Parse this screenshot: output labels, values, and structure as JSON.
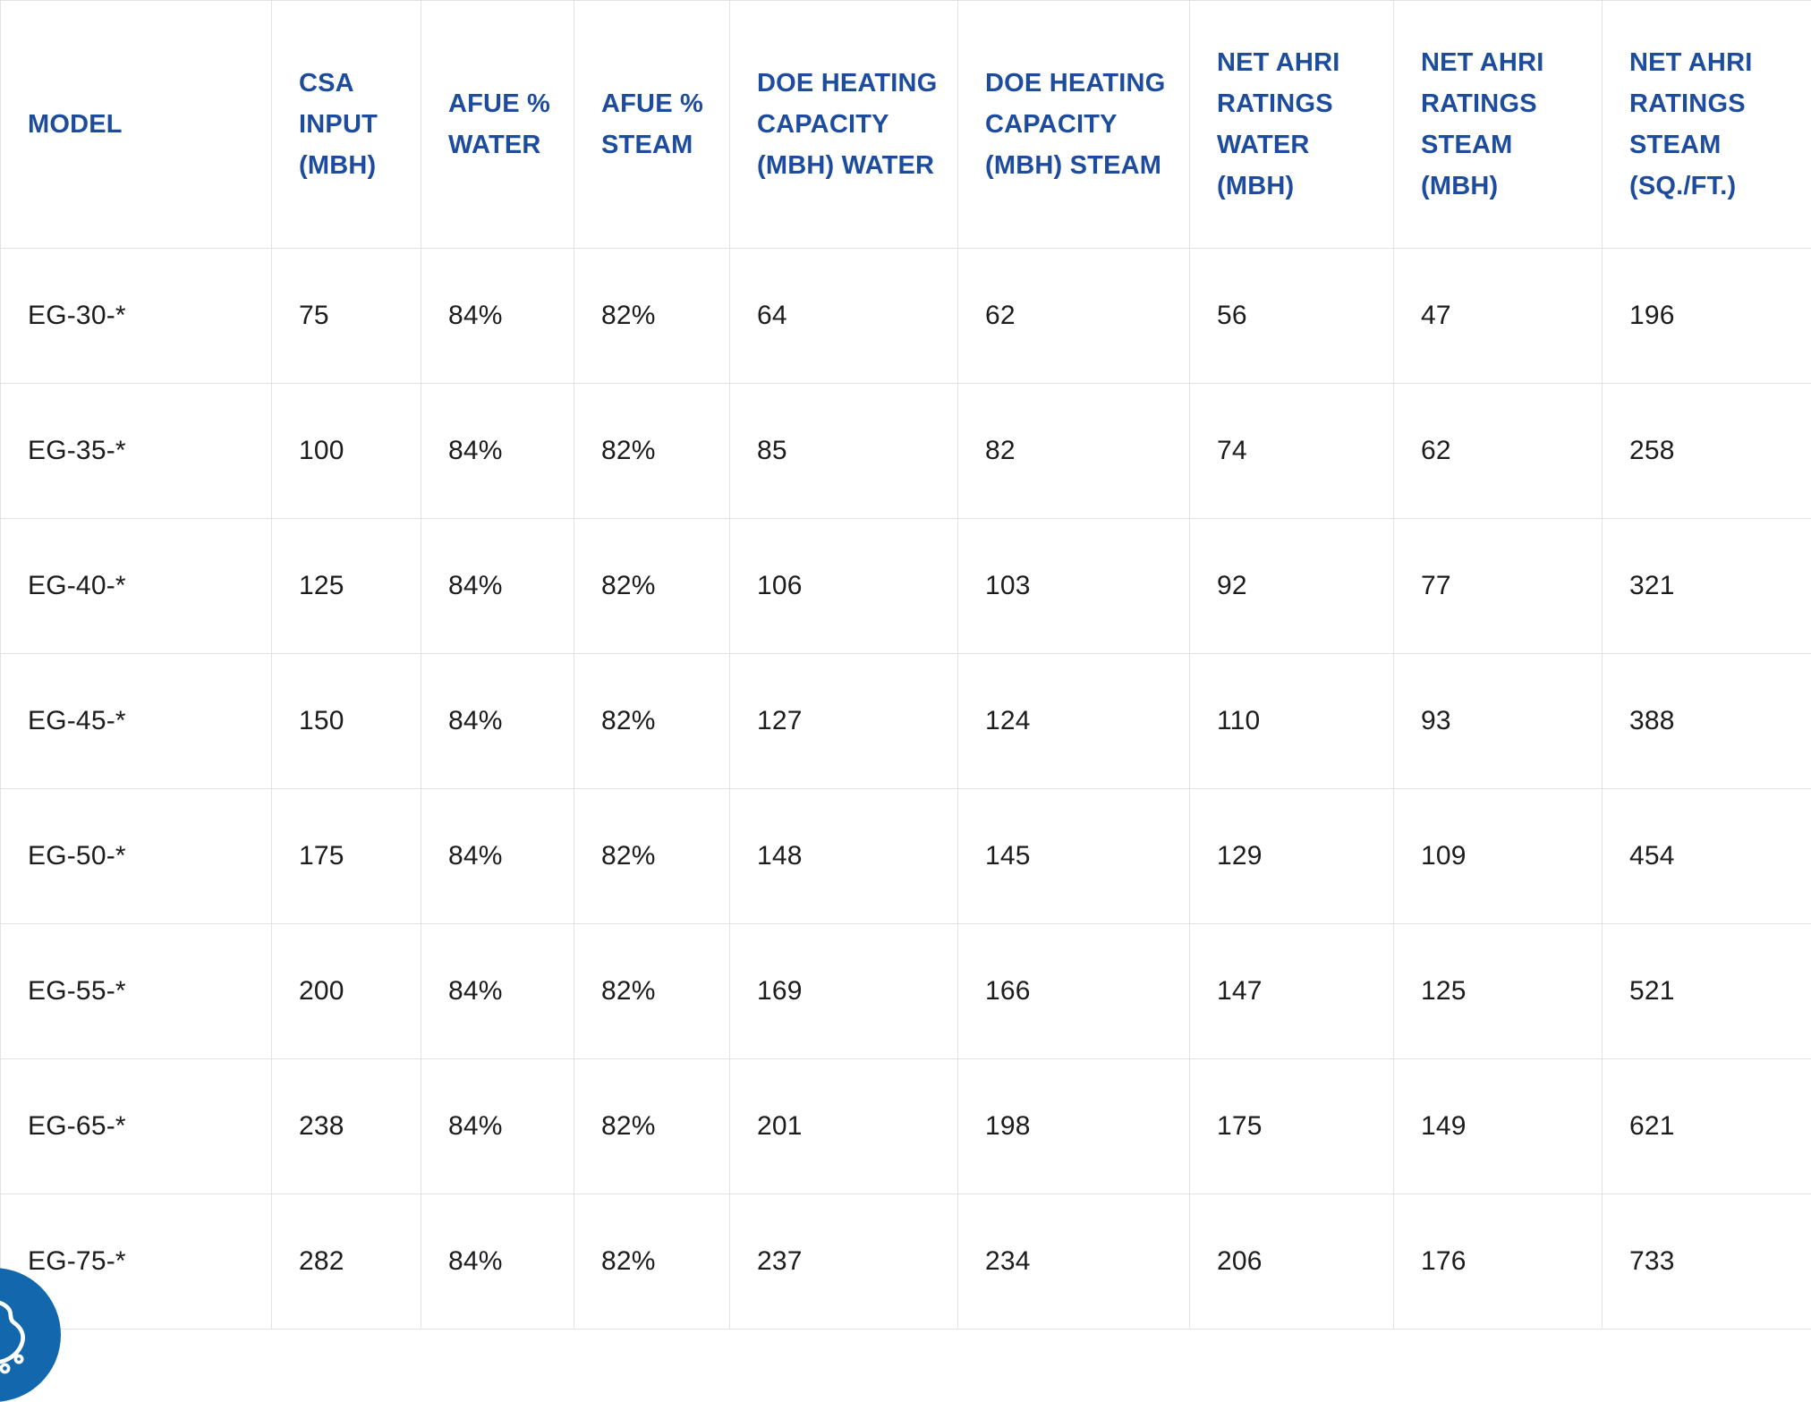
{
  "table": {
    "headers": [
      "MODEL",
      "CSA INPUT (MBH)",
      "AFUE % WATER",
      "AFUE % STEAM",
      "DOE HEATING CAPACITY (MBH) WATER",
      "DOE HEATING CAPACITY (MBH) STEAM",
      "NET AHRI RATINGS WATER (MBH)",
      "NET AHRI RATINGS STEAM (MBH)",
      "NET AHRI RATINGS STEAM (SQ./FT.)"
    ],
    "rows": [
      [
        "EG-30-*",
        "75",
        "84%",
        "82%",
        "64",
        "62",
        "56",
        "47",
        "196"
      ],
      [
        "EG-35-*",
        "100",
        "84%",
        "82%",
        "85",
        "82",
        "74",
        "62",
        "258"
      ],
      [
        "EG-40-*",
        "125",
        "84%",
        "82%",
        "106",
        "103",
        "92",
        "77",
        "321"
      ],
      [
        "EG-45-*",
        "150",
        "84%",
        "82%",
        "127",
        "124",
        "110",
        "93",
        "388"
      ],
      [
        "EG-50-*",
        "175",
        "84%",
        "82%",
        "148",
        "145",
        "129",
        "109",
        "454"
      ],
      [
        "EG-55-*",
        "200",
        "84%",
        "82%",
        "169",
        "166",
        "147",
        "125",
        "521"
      ],
      [
        "EG-65-*",
        "238",
        "84%",
        "82%",
        "201",
        "198",
        "175",
        "149",
        "621"
      ],
      [
        "EG-75-*",
        "282",
        "84%",
        "82%",
        "237",
        "234",
        "206",
        "176",
        "733"
      ]
    ]
  },
  "cookie_widget": {
    "icon": "cookie-icon"
  },
  "colors": {
    "header_text": "#1d4c9f",
    "body_text": "#1c1c1e",
    "border": "#e3e3e3",
    "cookie_button_background": "#1267ad",
    "cookie_icon_stroke": "#ffffff"
  }
}
